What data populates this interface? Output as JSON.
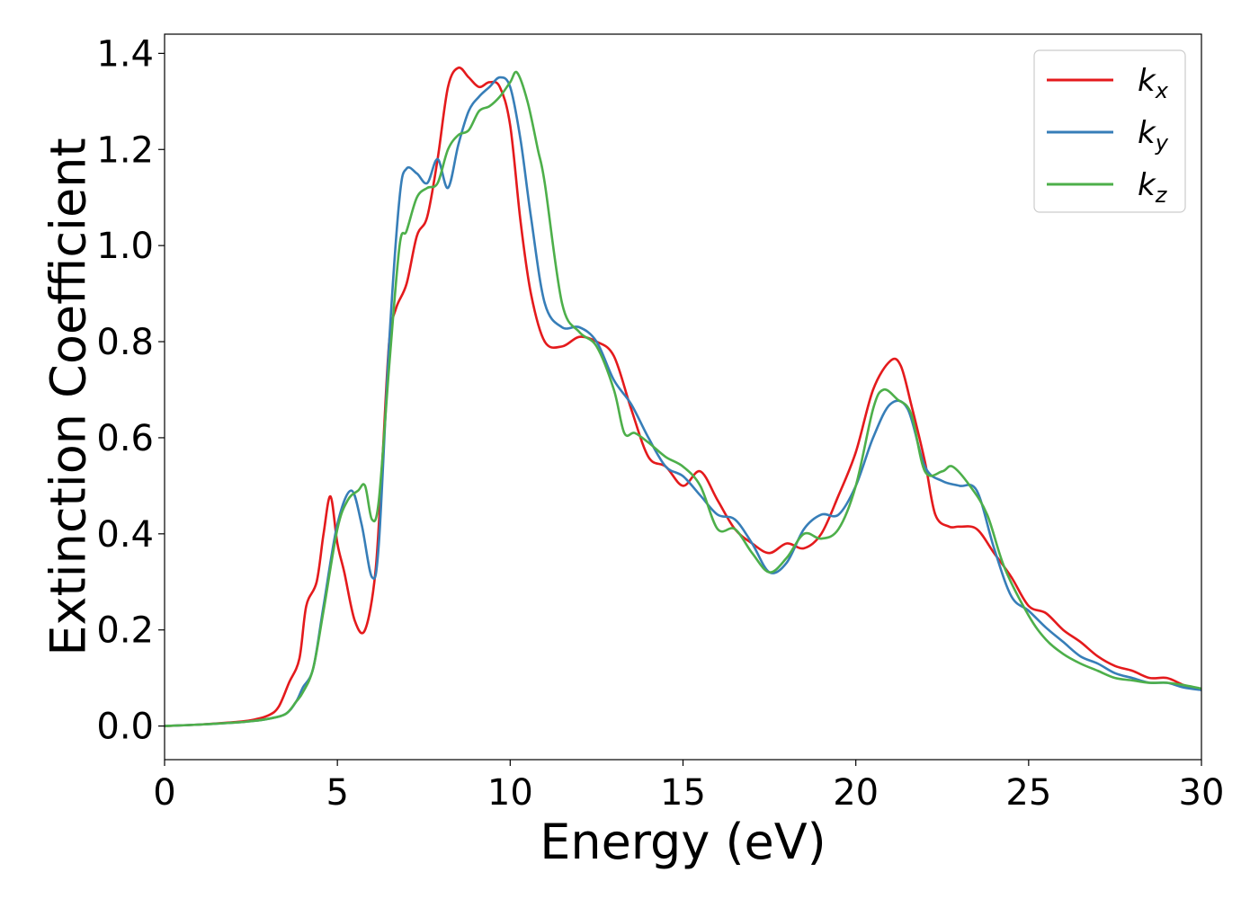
{
  "chart_data": {
    "type": "line",
    "title": "",
    "xlabel": "Energy (eV)",
    "ylabel": "Extinction Coefficient",
    "xlim": [
      0,
      30
    ],
    "ylim": [
      -0.07,
      1.44
    ],
    "xticks": [
      0,
      5,
      10,
      15,
      20,
      25,
      30
    ],
    "xtick_labels": [
      "0",
      "5",
      "10",
      "15",
      "20",
      "25",
      "30"
    ],
    "yticks": [
      0.0,
      0.2,
      0.4,
      0.6,
      0.8,
      1.0,
      1.2,
      1.4
    ],
    "ytick_labels": [
      "0.0",
      "0.2",
      "0.4",
      "0.6",
      "0.8",
      "1.0",
      "1.2",
      "1.4"
    ],
    "grid": false,
    "legend_position": "top-right",
    "series": [
      {
        "name": "k_x",
        "label_base": "k",
        "label_sub": "x",
        "color": "#e41a1c",
        "x": [
          0,
          1,
          2,
          2.5,
          3,
          3.3,
          3.6,
          3.9,
          4.1,
          4.4,
          4.6,
          4.8,
          5.0,
          5.2,
          5.5,
          5.8,
          6.1,
          6.3,
          6.5,
          6.7,
          7.0,
          7.3,
          7.6,
          7.9,
          8.2,
          8.5,
          8.8,
          9.1,
          9.4,
          9.7,
          10.0,
          10.3,
          10.6,
          11.0,
          11.5,
          12.0,
          12.5,
          13.0,
          13.5,
          14.0,
          14.5,
          15.0,
          15.5,
          16.0,
          16.5,
          17.0,
          17.5,
          18.0,
          18.5,
          19.0,
          19.5,
          20.0,
          20.5,
          21.0,
          21.3,
          21.6,
          22.0,
          22.3,
          22.7,
          23.0,
          23.5,
          24.0,
          24.5,
          25.0,
          25.5,
          26.0,
          26.5,
          27.0,
          27.5,
          28.0,
          28.5,
          29.0,
          29.5,
          30.0
        ],
        "y": [
          0.0,
          0.003,
          0.008,
          0.012,
          0.022,
          0.04,
          0.09,
          0.14,
          0.25,
          0.3,
          0.4,
          0.478,
          0.38,
          0.32,
          0.22,
          0.2,
          0.32,
          0.55,
          0.8,
          0.87,
          0.92,
          1.02,
          1.06,
          1.18,
          1.33,
          1.37,
          1.35,
          1.33,
          1.34,
          1.33,
          1.25,
          1.05,
          0.9,
          0.8,
          0.79,
          0.81,
          0.8,
          0.77,
          0.66,
          0.56,
          0.54,
          0.5,
          0.53,
          0.47,
          0.41,
          0.38,
          0.36,
          0.38,
          0.37,
          0.4,
          0.48,
          0.57,
          0.7,
          0.76,
          0.75,
          0.67,
          0.55,
          0.44,
          0.415,
          0.415,
          0.41,
          0.36,
          0.31,
          0.25,
          0.235,
          0.2,
          0.175,
          0.145,
          0.125,
          0.115,
          0.1,
          0.1,
          0.085,
          0.075
        ]
      },
      {
        "name": "k_y",
        "label_base": "k",
        "label_sub": "y",
        "color": "#377eb8",
        "x": [
          0,
          1,
          2,
          2.5,
          3,
          3.5,
          3.8,
          4.0,
          4.3,
          4.6,
          5.0,
          5.4,
          5.7,
          6.0,
          6.2,
          6.5,
          6.8,
          7.0,
          7.3,
          7.6,
          7.9,
          8.2,
          8.5,
          8.8,
          9.1,
          9.4,
          9.7,
          10.0,
          10.3,
          10.6,
          11.0,
          11.5,
          12.0,
          12.5,
          13.0,
          13.5,
          14.0,
          14.5,
          15.0,
          15.5,
          16.0,
          16.5,
          17.0,
          17.5,
          18.0,
          18.5,
          19.0,
          19.5,
          20.0,
          20.5,
          21.0,
          21.5,
          22.0,
          22.5,
          23.0,
          23.5,
          24.0,
          24.5,
          25.0,
          25.5,
          26.0,
          26.5,
          27.0,
          27.5,
          28.0,
          28.5,
          29.0,
          29.5,
          30.0
        ],
        "y": [
          0.0,
          0.003,
          0.007,
          0.01,
          0.015,
          0.025,
          0.05,
          0.08,
          0.12,
          0.25,
          0.42,
          0.49,
          0.42,
          0.31,
          0.38,
          0.8,
          1.1,
          1.16,
          1.15,
          1.13,
          1.18,
          1.12,
          1.21,
          1.28,
          1.31,
          1.33,
          1.35,
          1.33,
          1.22,
          1.06,
          0.88,
          0.83,
          0.83,
          0.8,
          0.72,
          0.67,
          0.6,
          0.54,
          0.52,
          0.48,
          0.44,
          0.43,
          0.38,
          0.32,
          0.34,
          0.41,
          0.44,
          0.44,
          0.5,
          0.6,
          0.67,
          0.66,
          0.54,
          0.51,
          0.5,
          0.49,
          0.37,
          0.27,
          0.24,
          0.205,
          0.175,
          0.145,
          0.13,
          0.11,
          0.1,
          0.09,
          0.09,
          0.08,
          0.075
        ]
      },
      {
        "name": "k_z",
        "label_base": "k",
        "label_sub": "z",
        "color": "#4daf4a",
        "x": [
          0,
          1,
          2,
          2.5,
          3,
          3.5,
          3.8,
          4.0,
          4.3,
          4.6,
          5.0,
          5.3,
          5.6,
          5.8,
          6.0,
          6.2,
          6.5,
          6.8,
          7.0,
          7.3,
          7.6,
          7.9,
          8.2,
          8.5,
          8.8,
          9.1,
          9.4,
          9.7,
          10.0,
          10.2,
          10.5,
          10.8,
          11.0,
          11.5,
          12.0,
          12.5,
          13.0,
          13.3,
          13.6,
          14.0,
          14.5,
          15.0,
          15.5,
          16.0,
          16.5,
          17.0,
          17.5,
          18.0,
          18.5,
          19.0,
          19.5,
          20.0,
          20.5,
          20.8,
          21.2,
          21.6,
          22.0,
          22.5,
          22.8,
          23.3,
          23.8,
          24.3,
          25.0,
          25.5,
          26.0,
          26.5,
          27.0,
          27.5,
          28.0,
          28.5,
          29.0,
          29.5,
          30.0
        ],
        "y": [
          0.0,
          0.003,
          0.007,
          0.01,
          0.015,
          0.025,
          0.05,
          0.07,
          0.12,
          0.24,
          0.41,
          0.47,
          0.49,
          0.5,
          0.43,
          0.47,
          0.75,
          1.0,
          1.03,
          1.1,
          1.12,
          1.13,
          1.2,
          1.23,
          1.24,
          1.28,
          1.29,
          1.31,
          1.34,
          1.36,
          1.3,
          1.2,
          1.13,
          0.88,
          0.82,
          0.79,
          0.7,
          0.61,
          0.61,
          0.59,
          0.56,
          0.54,
          0.5,
          0.41,
          0.41,
          0.36,
          0.32,
          0.35,
          0.4,
          0.39,
          0.41,
          0.5,
          0.66,
          0.7,
          0.68,
          0.65,
          0.53,
          0.53,
          0.54,
          0.5,
          0.44,
          0.33,
          0.23,
          0.18,
          0.15,
          0.13,
          0.115,
          0.1,
          0.095,
          0.09,
          0.09,
          0.085,
          0.078
        ]
      }
    ]
  }
}
